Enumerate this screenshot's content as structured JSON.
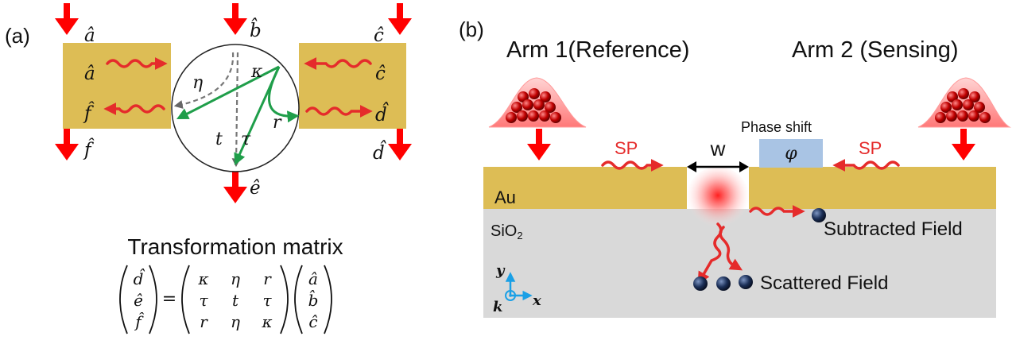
{
  "colors": {
    "gold": "#ddbd55",
    "substrate": "#d9d9d9",
    "arrow_red": "#ff0000",
    "wave_red": "#e52b2b",
    "green": "#1f9e4a",
    "gray_dash": "#777777",
    "phase_box": "#a9c4e4",
    "particle_red": "#c00000",
    "particle_dark": "#1b2f57",
    "axis_blue": "#1aa0e6"
  },
  "icons": [
    "red-down-arrow-icon",
    "wavy-red-arrow-icon",
    "photon-bunch-icon",
    "nanoparticle-icon",
    "coordinate-axes-icon"
  ],
  "panel_a": {
    "label": "(a)",
    "port_top_left": "â",
    "port_top_center": "b̂",
    "port_top_right": "ĉ",
    "port_bottom_left": "f̂",
    "port_bottom_center": "ê",
    "port_bottom_right": "d̂",
    "box_left_top": "â",
    "box_left_bottom": "f̂",
    "box_right_top": "ĉ",
    "box_right_bottom": "d̂",
    "coef_kappa": "κ",
    "coef_eta": "η",
    "coef_r": "r",
    "coef_t": "t",
    "coef_tau": "τ",
    "matrix_title": "Transformation matrix",
    "matrix_lhs": [
      "d̂",
      "ê",
      "f̂"
    ],
    "matrix_rows": [
      [
        "κ",
        "η",
        "r"
      ],
      [
        "τ",
        "t",
        "τ"
      ],
      [
        "r",
        "η",
        "κ"
      ]
    ],
    "matrix_rhs": [
      "â",
      "b̂",
      "ĉ"
    ],
    "equals": "="
  },
  "panel_b": {
    "label": "(b)",
    "arm1": "Arm 1(Reference)",
    "arm2": "Arm 2 (Sensing)",
    "phase_shift": "Phase shift",
    "phi": "φ",
    "sp_left": "SP",
    "sp_right": "SP",
    "width": "w",
    "au": "Au",
    "sio2_main": "SiO",
    "sio2_sub": "2",
    "subtracted": "Subtracted  Field",
    "scattered": "Scattered Field",
    "axis_y": "y",
    "axis_x": "x",
    "axis_k": "k"
  }
}
